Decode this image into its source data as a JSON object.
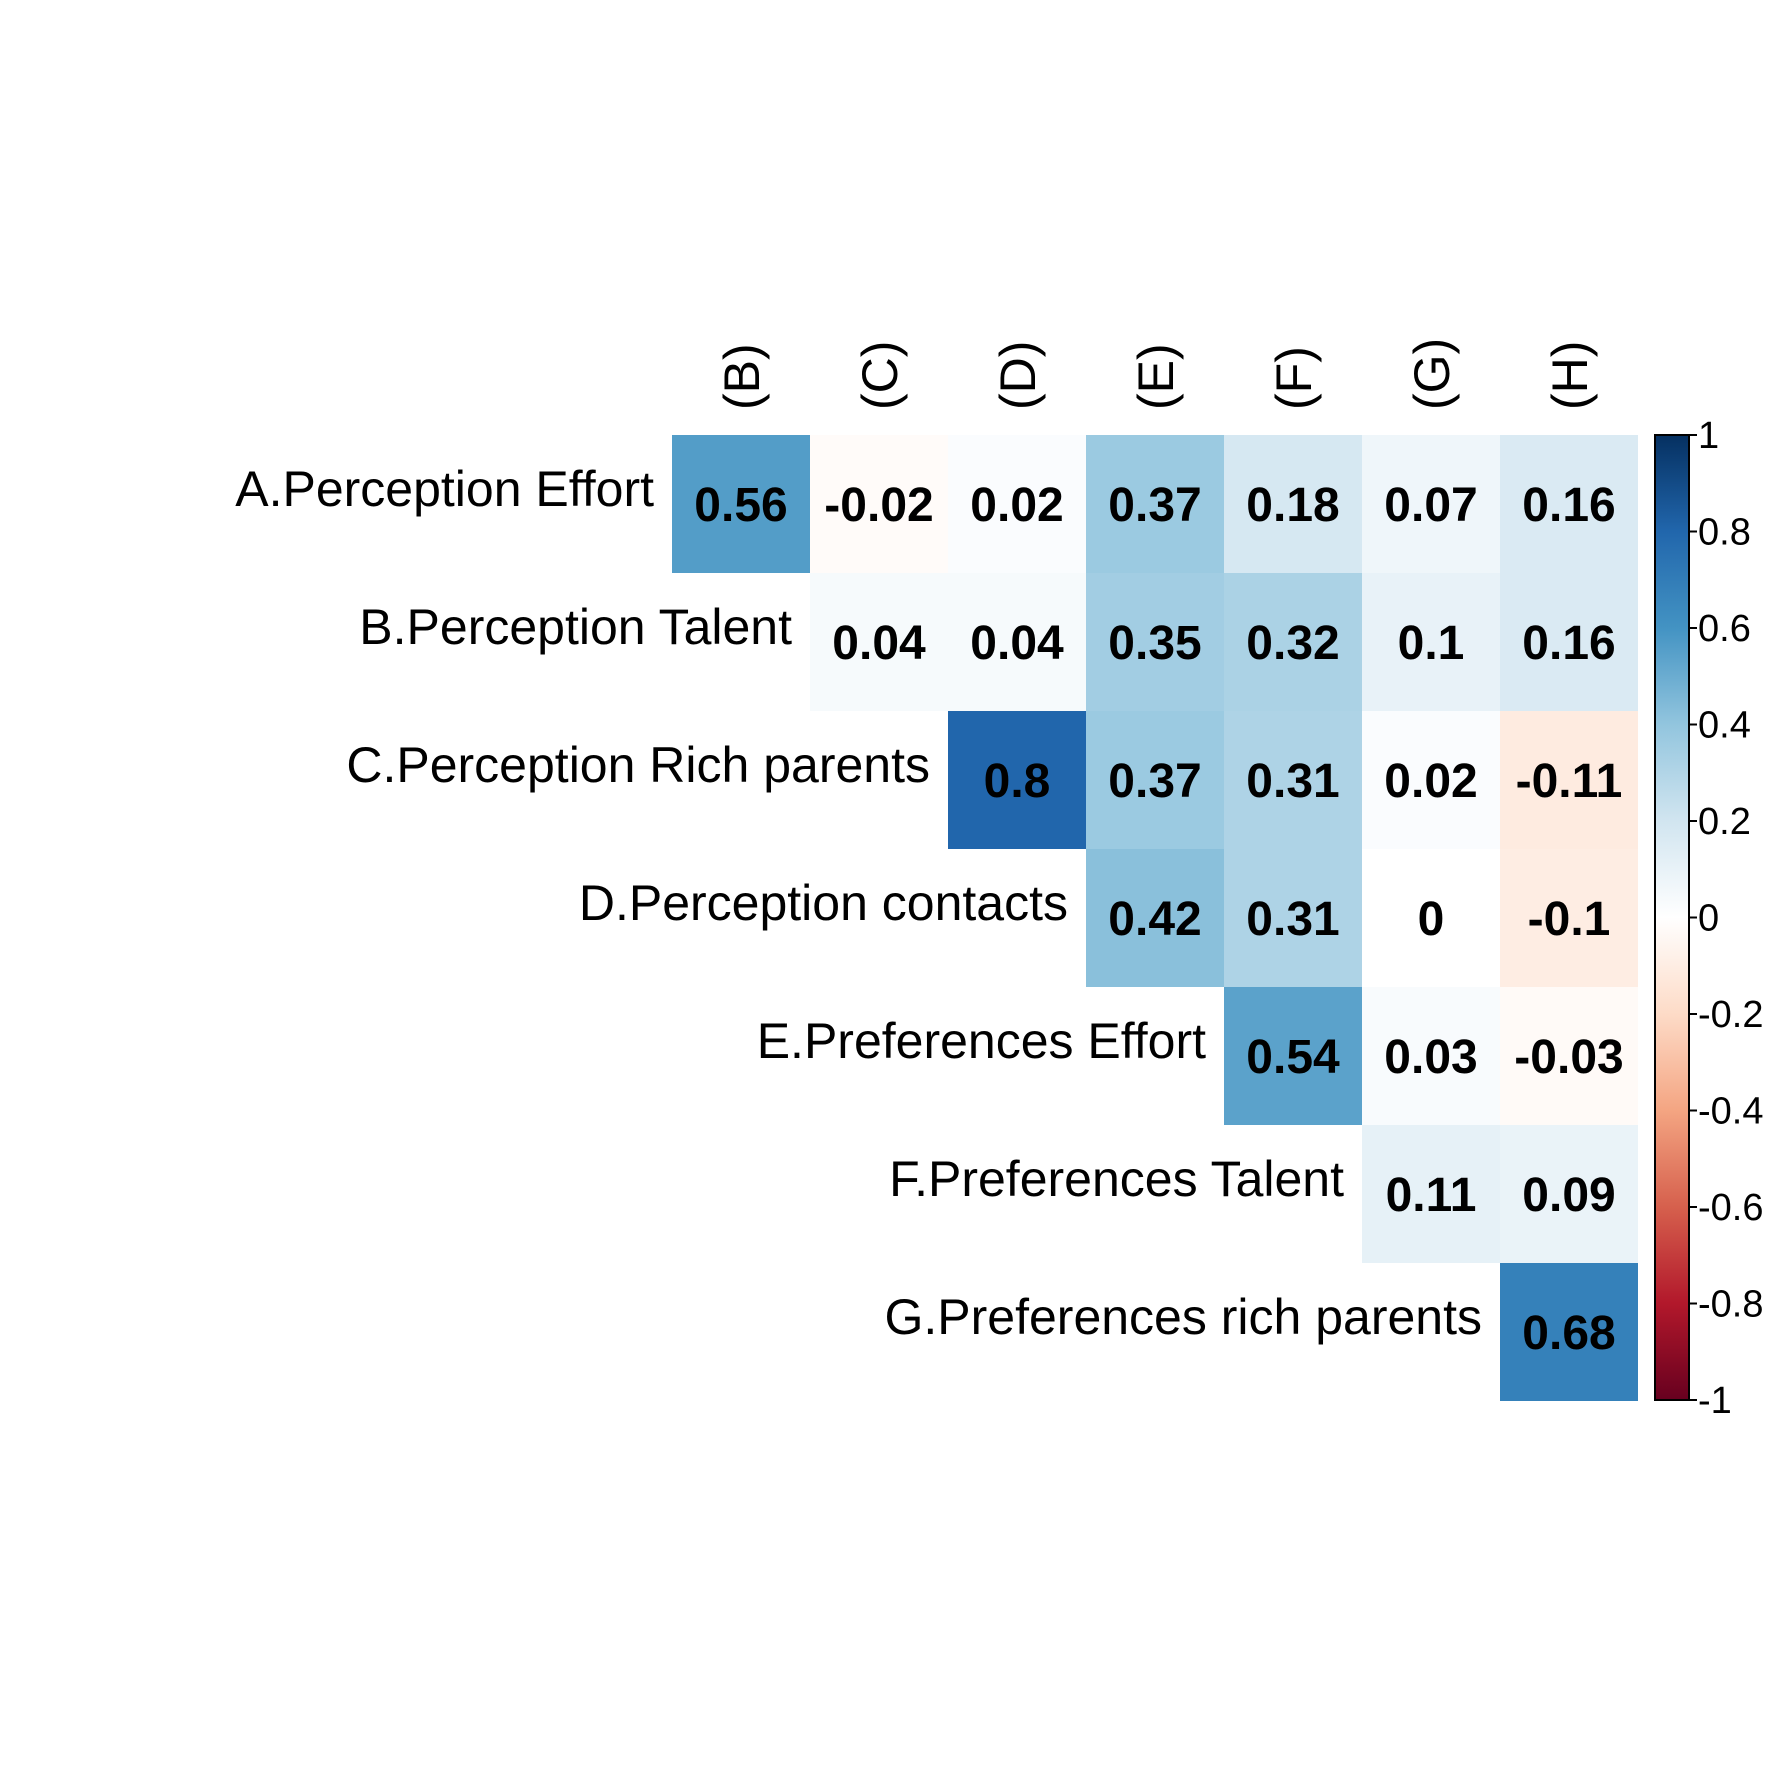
{
  "chart_data": {
    "type": "heatmap",
    "title": "",
    "layout": "upper-triangle",
    "row_labels": [
      "A.Perception Effort",
      "B.Perception Talent",
      "C.Perception Rich parents",
      "D.Perception contacts",
      "E.Preferences Effort",
      "F.Preferences Talent",
      "G.Preferences rich parents"
    ],
    "col_labels": [
      "(B)",
      "(C)",
      "(D)",
      "(E)",
      "(F)",
      "(G)",
      "(H)"
    ],
    "values": [
      [
        0.56,
        -0.02,
        0.02,
        0.37,
        0.18,
        0.07,
        0.16
      ],
      [
        null,
        0.04,
        0.04,
        0.35,
        0.32,
        0.1,
        0.16
      ],
      [
        null,
        null,
        0.8,
        0.37,
        0.31,
        0.02,
        -0.11
      ],
      [
        null,
        null,
        null,
        0.42,
        0.31,
        0,
        -0.1
      ],
      [
        null,
        null,
        null,
        null,
        0.54,
        0.03,
        -0.03
      ],
      [
        null,
        null,
        null,
        null,
        null,
        0.11,
        0.09
      ],
      [
        null,
        null,
        null,
        null,
        null,
        null,
        0.68
      ]
    ],
    "color_scale": {
      "range": [
        -1,
        1
      ],
      "ticks": [
        "1",
        "0.8",
        "0.6",
        "0.4",
        "0.2",
        "0",
        "-0.2",
        "-0.4",
        "-0.6",
        "-0.8",
        "-1"
      ],
      "tick_values": [
        1,
        0.8,
        0.6,
        0.4,
        0.2,
        0,
        -0.2,
        -0.4,
        -0.6,
        -0.8,
        -1
      ],
      "palette": "RdBu",
      "low_color": "#67001F",
      "mid_color": "#FFFFFF",
      "high_color": "#053061"
    }
  }
}
